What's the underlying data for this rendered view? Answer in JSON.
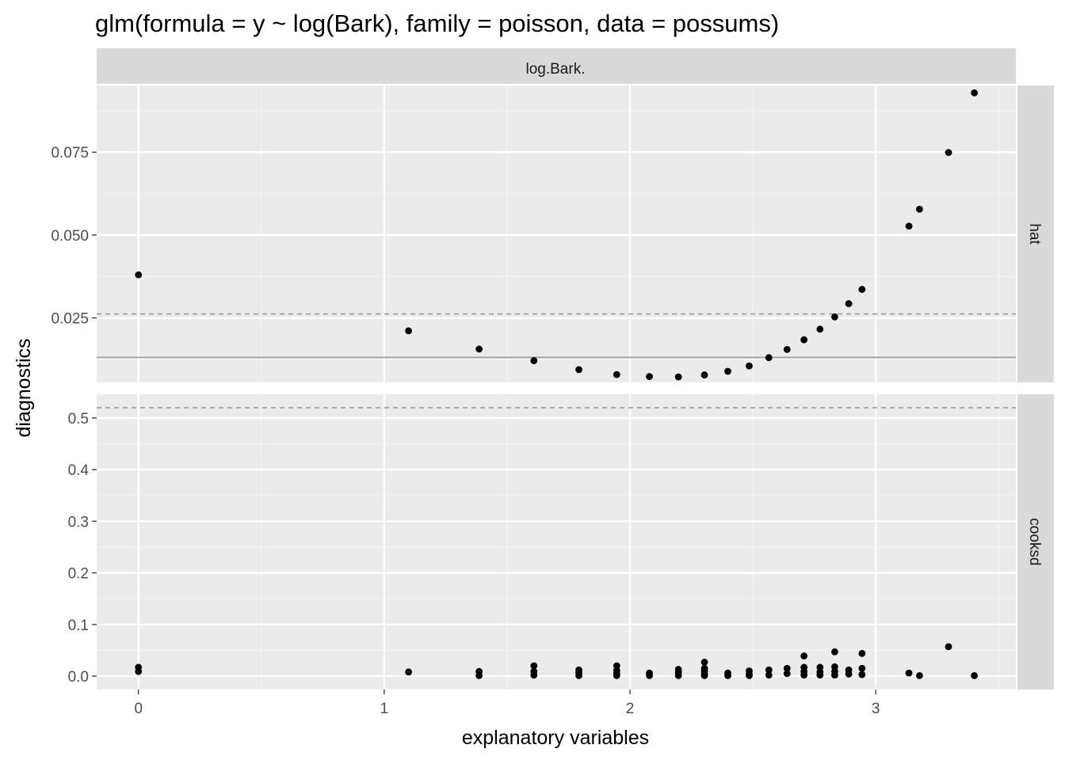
{
  "chart_data": {
    "type": "scatter",
    "title": "glm(formula = y ~ log(Bark), family = poisson, data = possums)",
    "xlabel": "explanatory variables",
    "ylabel": "diagnostics",
    "column_strip": "log.Bark.",
    "xlim": [
      -0.17,
      3.57
    ],
    "xticks": [
      0,
      1,
      2,
      3
    ],
    "xtick_labels": [
      "0",
      "1",
      "2",
      "3"
    ],
    "grid": true,
    "panels": [
      {
        "strip": "hat",
        "ylim": [
          0.00555,
          0.09512
        ],
        "yticks": [
          0.025,
          0.05,
          0.075
        ],
        "ytick_labels": [
          "0.025",
          "0.050",
          "0.075"
        ],
        "reference_lines": {
          "solid": 0.0131,
          "dashed": 0.0262
        },
        "points": [
          [
            0.0,
            0.038
          ],
          [
            1.099,
            0.0211
          ],
          [
            1.386,
            0.0156
          ],
          [
            1.609,
            0.0121
          ],
          [
            1.792,
            0.0094
          ],
          [
            1.946,
            0.0079
          ],
          [
            2.079,
            0.0073
          ],
          [
            2.197,
            0.0072
          ],
          [
            2.303,
            0.0078
          ],
          [
            2.398,
            0.0089
          ],
          [
            2.485,
            0.0105
          ],
          [
            2.565,
            0.013
          ],
          [
            2.639,
            0.0155
          ],
          [
            2.708,
            0.0184
          ],
          [
            2.773,
            0.0216
          ],
          [
            2.833,
            0.0253
          ],
          [
            2.89,
            0.0293
          ],
          [
            2.944,
            0.0336
          ],
          [
            3.135,
            0.0527
          ],
          [
            3.178,
            0.0578
          ],
          [
            3.296,
            0.0749
          ],
          [
            3.401,
            0.0929
          ]
        ]
      },
      {
        "strip": "cooksd",
        "ylim": [
          -0.026,
          0.546
        ],
        "yticks": [
          0.0,
          0.1,
          0.2,
          0.3,
          0.4,
          0.5
        ],
        "ytick_labels": [
          "0.0",
          "0.1",
          "0.2",
          "0.3",
          "0.4",
          "0.5"
        ],
        "reference_lines": {
          "dashed": 0.52
        },
        "points": [
          [
            0.0,
            0.017
          ],
          [
            0.0,
            0.009
          ],
          [
            1.099,
            0.008
          ],
          [
            1.386,
            0.009
          ],
          [
            1.386,
            0.001
          ],
          [
            1.609,
            0.02
          ],
          [
            1.609,
            0.009
          ],
          [
            1.609,
            0.002
          ],
          [
            1.792,
            0.012
          ],
          [
            1.792,
            0.007
          ],
          [
            1.792,
            0.001
          ],
          [
            1.946,
            0.02
          ],
          [
            1.946,
            0.011
          ],
          [
            1.946,
            0.005
          ],
          [
            1.946,
            0.001
          ],
          [
            2.079,
            0.006
          ],
          [
            2.079,
            0.001
          ],
          [
            2.197,
            0.013
          ],
          [
            2.197,
            0.007
          ],
          [
            2.197,
            0.001
          ],
          [
            2.303,
            0.027
          ],
          [
            2.303,
            0.015
          ],
          [
            2.303,
            0.01
          ],
          [
            2.303,
            0.005
          ],
          [
            2.303,
            0.001
          ],
          [
            2.398,
            0.006
          ],
          [
            2.398,
            0.001
          ],
          [
            2.485,
            0.01
          ],
          [
            2.485,
            0.004
          ],
          [
            2.485,
            0.001
          ],
          [
            2.565,
            0.012
          ],
          [
            2.565,
            0.002
          ],
          [
            2.639,
            0.015
          ],
          [
            2.639,
            0.005
          ],
          [
            2.708,
            0.039
          ],
          [
            2.708,
            0.017
          ],
          [
            2.708,
            0.009
          ],
          [
            2.708,
            0.002
          ],
          [
            2.773,
            0.017
          ],
          [
            2.773,
            0.008
          ],
          [
            2.773,
            0.002
          ],
          [
            2.833,
            0.047
          ],
          [
            2.833,
            0.018
          ],
          [
            2.833,
            0.009
          ],
          [
            2.833,
            0.002
          ],
          [
            2.89,
            0.012
          ],
          [
            2.89,
            0.004
          ],
          [
            2.944,
            0.044
          ],
          [
            2.944,
            0.015
          ],
          [
            2.944,
            0.003
          ],
          [
            3.135,
            0.006
          ],
          [
            3.178,
            0.001
          ],
          [
            3.296,
            0.057
          ],
          [
            3.401,
            0.001
          ]
        ]
      }
    ]
  },
  "colors": {
    "panel_background": "#ebebeb",
    "strip_background": "#d9d9d9",
    "grid_major": "#ffffff",
    "grid_minor": "#f5f5f5",
    "point": "#000000",
    "reference_line": "#999999"
  }
}
